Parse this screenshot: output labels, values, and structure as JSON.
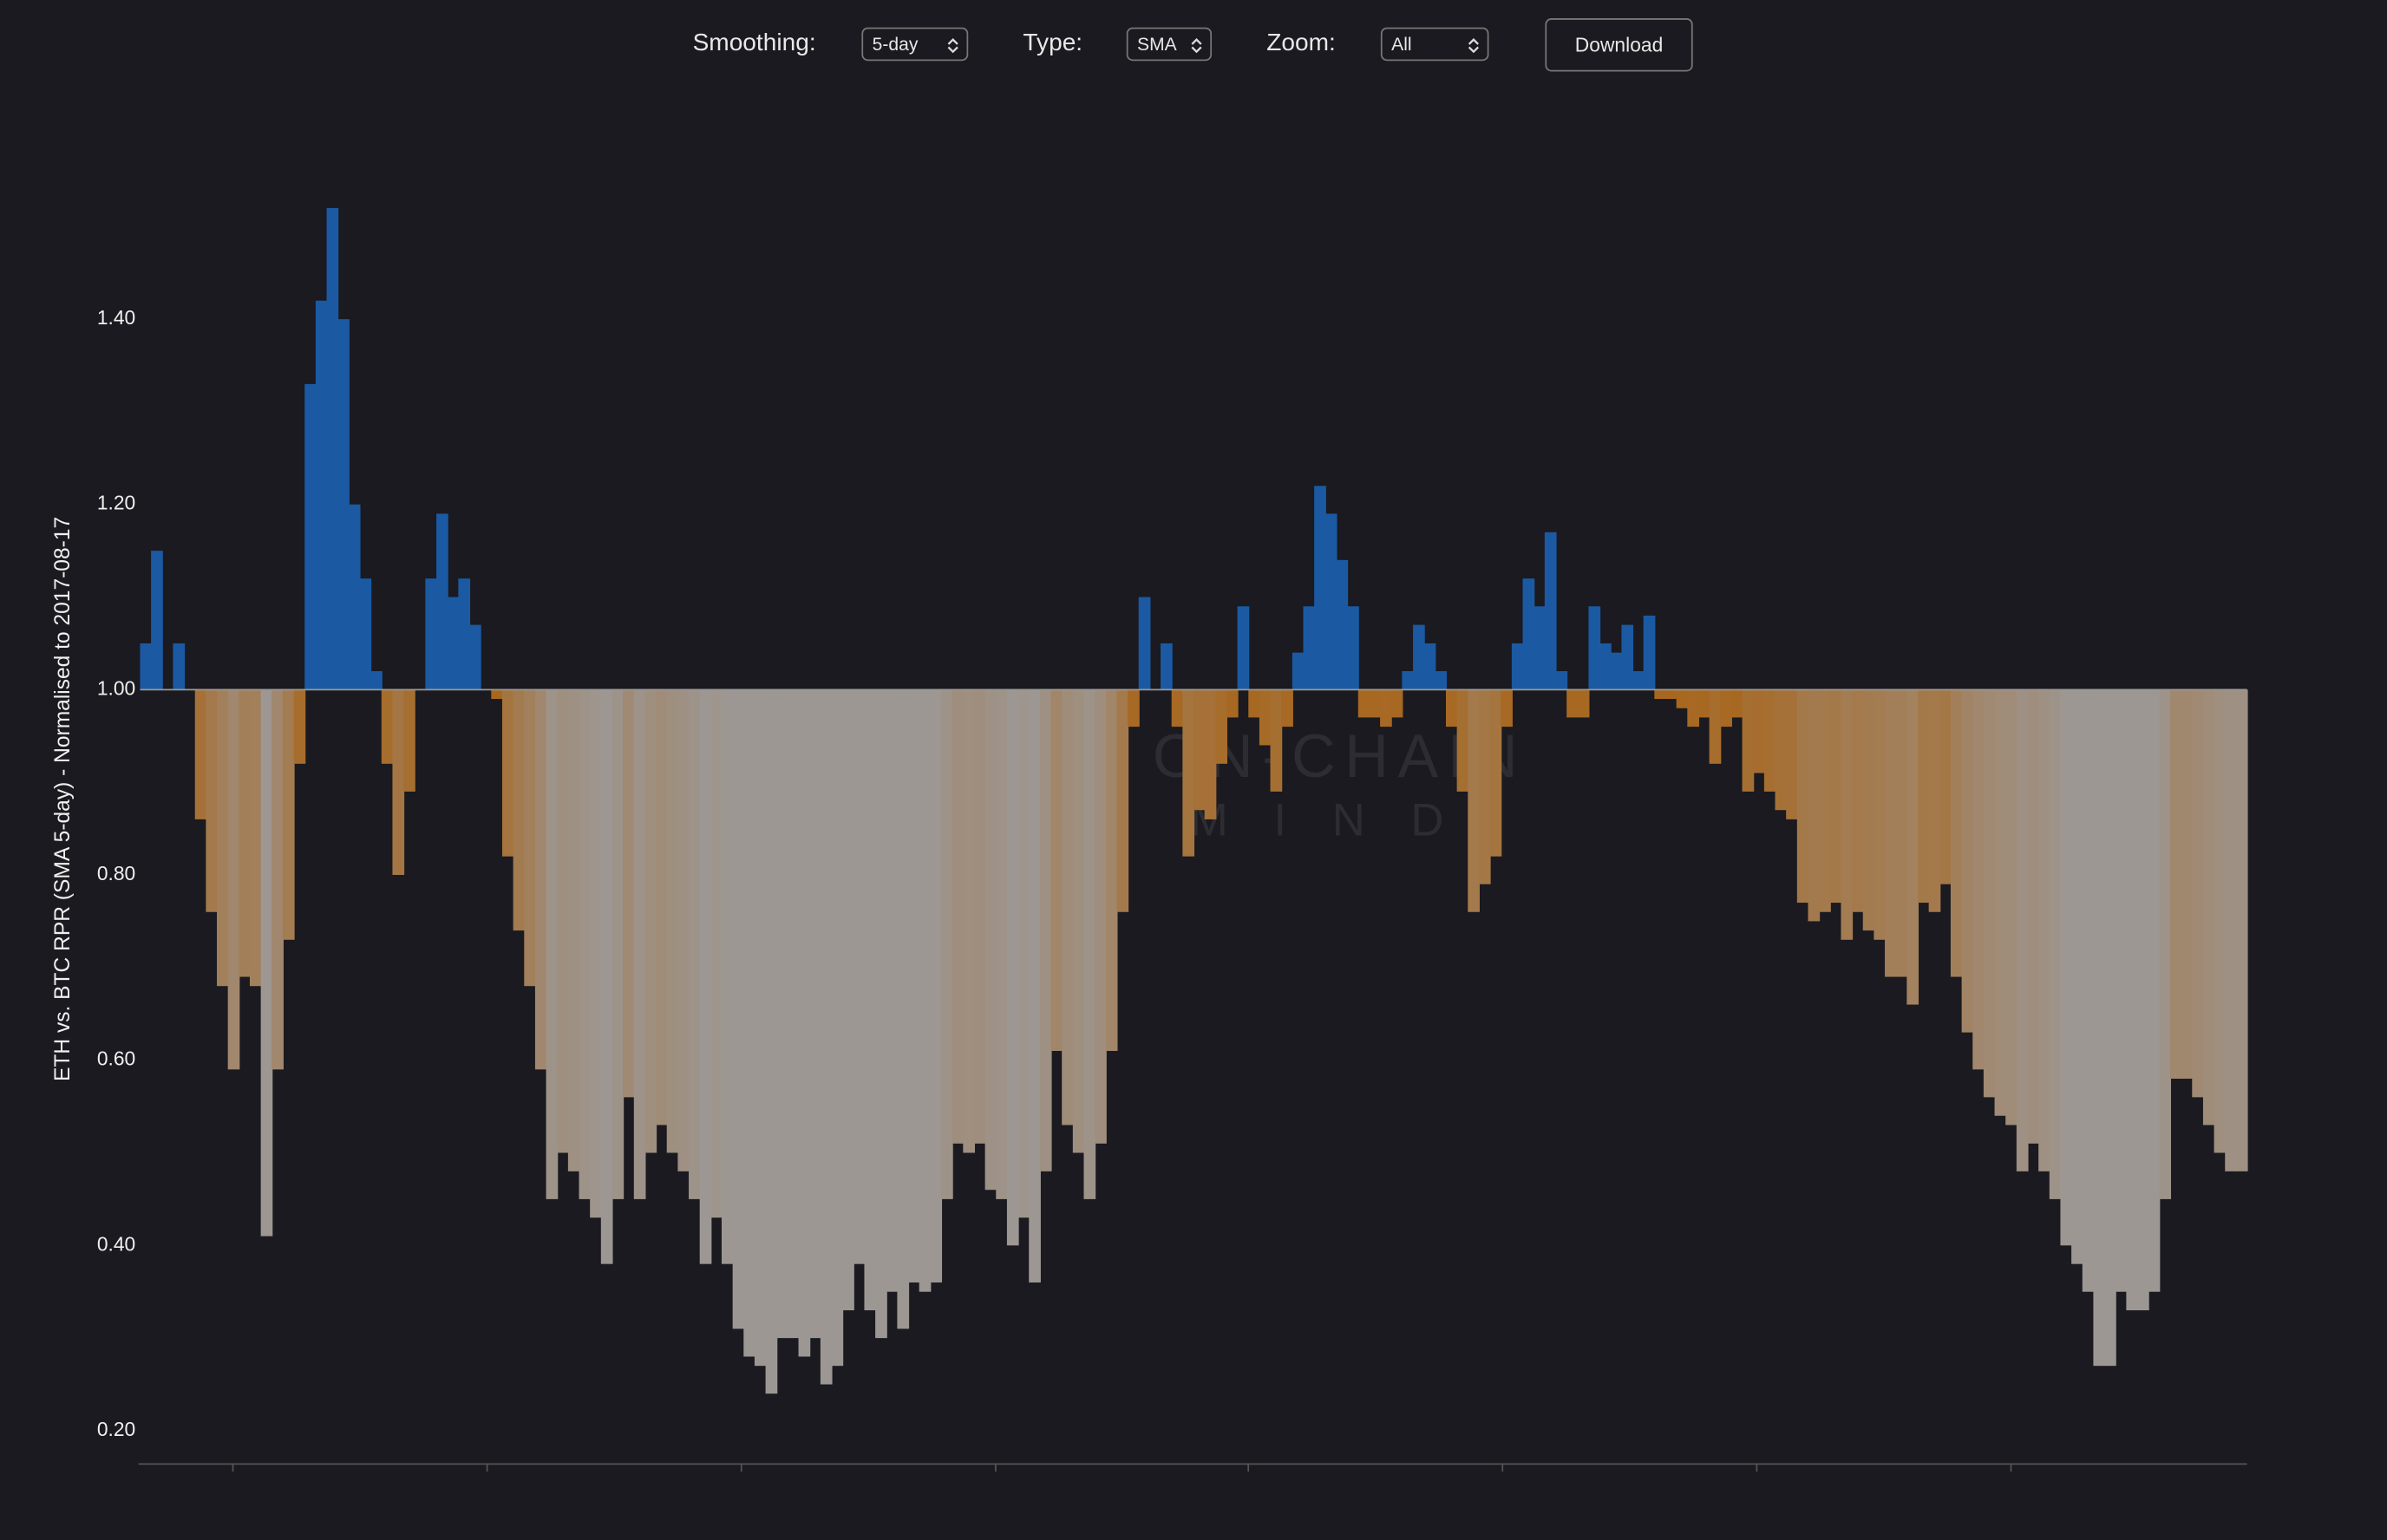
{
  "controls": {
    "smoothing": {
      "label": "Smoothing:",
      "value": "5-day"
    },
    "type": {
      "label": "Type:",
      "value": "SMA"
    },
    "zoom": {
      "label": "Zoom:",
      "value": "All"
    },
    "download": "Download"
  },
  "chart_data": {
    "type": "bar",
    "ylabel": "ETH vs. BTC RPR (SMA 5-day) - Normalised to 2017-08-17",
    "watermark": [
      "ON-CHAIN",
      "MIND"
    ],
    "values": [
      1.05,
      1.15,
      1.0,
      1.05,
      1.0,
      0.86,
      0.76,
      0.68,
      0.59,
      0.69,
      0.68,
      0.41,
      0.59,
      0.73,
      0.92,
      1.33,
      1.42,
      1.52,
      1.4,
      1.2,
      1.12,
      1.02,
      0.92,
      0.8,
      0.89,
      1.0,
      1.12,
      1.19,
      1.1,
      1.12,
      1.07,
      1.0,
      0.99,
      0.82,
      0.74,
      0.68,
      0.59,
      0.45,
      0.5,
      0.48,
      0.45,
      0.43,
      0.38,
      0.45,
      0.56,
      0.45,
      0.5,
      0.53,
      0.5,
      0.48,
      0.45,
      0.38,
      0.43,
      0.38,
      0.31,
      0.28,
      0.27,
      0.24,
      0.3,
      0.3,
      0.28,
      0.3,
      0.25,
      0.27,
      0.33,
      0.38,
      0.33,
      0.3,
      0.35,
      0.31,
      0.36,
      0.35,
      0.36,
      0.45,
      0.51,
      0.5,
      0.51,
      0.46,
      0.45,
      0.4,
      0.43,
      0.36,
      0.48,
      0.61,
      0.53,
      0.5,
      0.45,
      0.51,
      0.61,
      0.76,
      0.96,
      1.1,
      1.0,
      1.05,
      0.96,
      0.82,
      0.87,
      0.86,
      0.92,
      0.97,
      1.09,
      0.97,
      0.94,
      0.89,
      0.96,
      1.04,
      1.09,
      1.22,
      1.19,
      1.14,
      1.09,
      0.97,
      0.97,
      0.96,
      0.97,
      1.02,
      1.07,
      1.05,
      1.02,
      0.96,
      0.89,
      0.76,
      0.79,
      0.82,
      0.96,
      1.05,
      1.12,
      1.09,
      1.17,
      1.02,
      0.97,
      0.97,
      1.09,
      1.05,
      1.04,
      1.07,
      1.02,
      1.08,
      0.99,
      0.99,
      0.98,
      0.96,
      0.97,
      0.92,
      0.96,
      0.97,
      0.89,
      0.91,
      0.89,
      0.87,
      0.86,
      0.77,
      0.75,
      0.76,
      0.77,
      0.73,
      0.76,
      0.74,
      0.73,
      0.69,
      0.69,
      0.66,
      0.77,
      0.76,
      0.79,
      0.69,
      0.63,
      0.59,
      0.56,
      0.54,
      0.53,
      0.48,
      0.51,
      0.48,
      0.45,
      0.4,
      0.38,
      0.35,
      0.27,
      0.27,
      0.35,
      0.33,
      0.33,
      0.35,
      0.45,
      0.58,
      0.58,
      0.56,
      0.53,
      0.5,
      0.48,
      0.48
    ],
    "ylim": [
      0.164,
      1.646
    ],
    "yticks": [
      {
        "value": 0.2,
        "label": "0.20"
      },
      {
        "value": 0.4,
        "label": "0.40"
      },
      {
        "value": 0.6,
        "label": "0.60"
      },
      {
        "value": 0.8,
        "label": "0.80"
      },
      {
        "value": 1.0,
        "label": "1.00"
      },
      {
        "value": 1.2,
        "label": "1.20"
      },
      {
        "value": 1.4,
        "label": "1.40"
      }
    ],
    "baseline": 1,
    "colors": {
      "above": "#1b5aa3",
      "below_near": "#a8661c",
      "below_far": "#9d9793"
    }
  }
}
